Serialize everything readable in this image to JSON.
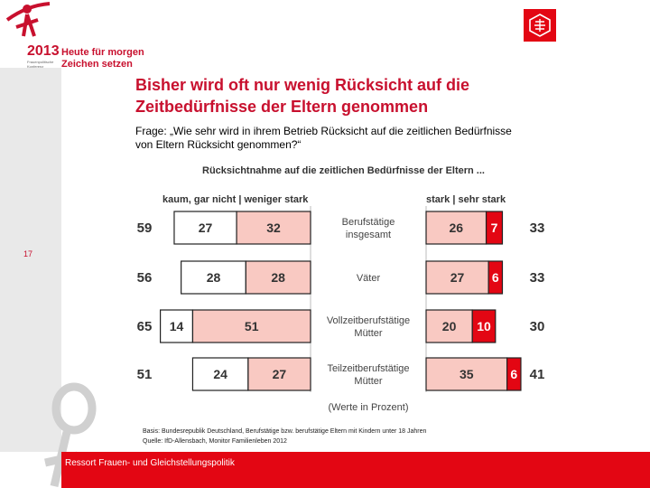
{
  "logo": {
    "year": "2013",
    "sub": "Frauenpolitische Konferenz",
    "slogan_line1": "Heute für morgen",
    "slogan_line2": "Zeichen setzen"
  },
  "brand_logo": "IG-logo",
  "slide_number": "17",
  "title_line1": "Bisher wird oft nur wenig Rücksicht auf die",
  "title_line2": "Zeitbedürfnisse der Eltern genommen",
  "question_line1": "Frage: „Wie sehr wird in ihrem Betrieb Rücksicht auf die zeitlichen Bedürfnisse",
  "question_line2": "von Eltern Rücksicht genommen?“",
  "source_line1": "Basis: Bundesrepublik Deutschland, Berufstätige bzw. berufstätige Eltern mit Kindern unter 18 Jahren",
  "source_line2": "Quelle: IfD-Allensbach, Monitor Familienleben 2012",
  "footer": "Ressort Frauen- und Gleichstellungspolitik",
  "colors": {
    "red": "#e30613",
    "pink": "#f9c9c2",
    "text": "#333333"
  },
  "chart_data": {
    "type": "bar",
    "title": "Rücksichtnahme auf die zeitlichen Bedürfnisse der Eltern ...",
    "left_header": "kaum, gar nicht | weniger stark",
    "right_header": "stark | sehr stark",
    "unit_note": "(Werte in Prozent)",
    "categories": [
      [
        "Berufstätige",
        "insgesamt"
      ],
      [
        "Väter"
      ],
      [
        "Vollzeitberufstätige",
        "Mütter"
      ],
      [
        "Teilzeitberufstätige",
        "Mütter"
      ]
    ],
    "left_totals": [
      59,
      56,
      65,
      51
    ],
    "right_totals": [
      33,
      33,
      30,
      41
    ],
    "series": [
      {
        "name": "kaum, gar nicht",
        "side": "left",
        "values": [
          27,
          28,
          14,
          24
        ]
      },
      {
        "name": "weniger stark",
        "side": "left",
        "values": [
          32,
          28,
          51,
          27
        ]
      },
      {
        "name": "stark",
        "side": "right",
        "values": [
          26,
          27,
          20,
          35
        ]
      },
      {
        "name": "sehr stark",
        "side": "right",
        "values": [
          7,
          6,
          10,
          6
        ]
      }
    ]
  }
}
